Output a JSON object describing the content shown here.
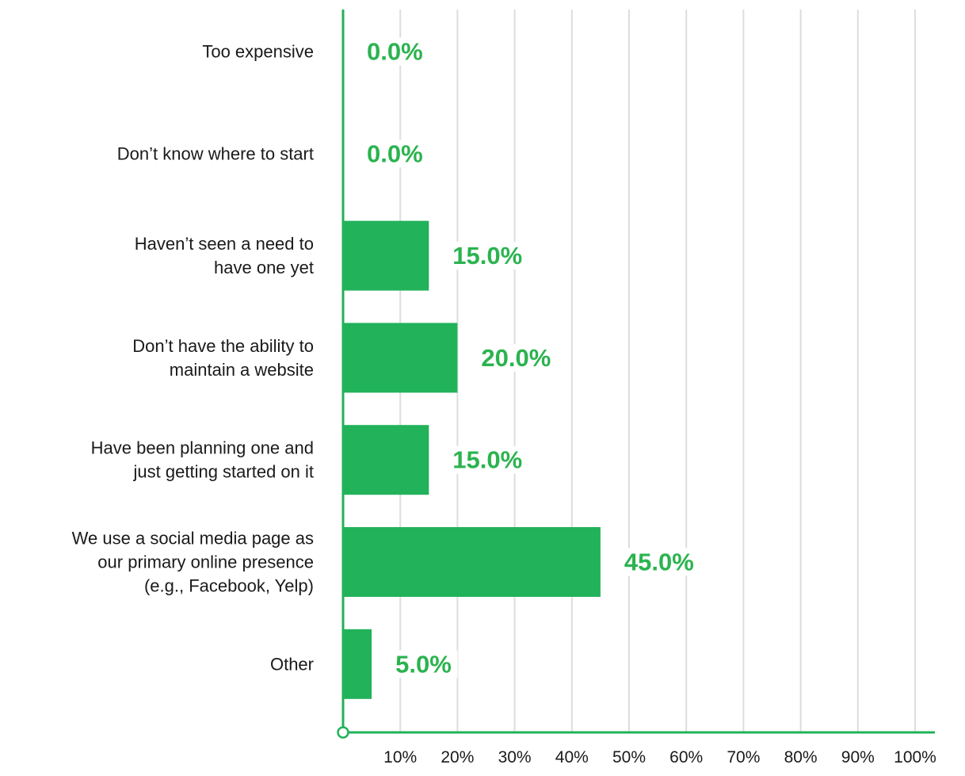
{
  "chart_data": {
    "type": "bar",
    "orientation": "horizontal",
    "categories": [
      [
        "Too expensive"
      ],
      [
        "Don’t know where to start"
      ],
      [
        "Haven’t seen a need to",
        "have one yet"
      ],
      [
        "Don’t have the ability to",
        "maintain a website"
      ],
      [
        "Have been planning one and",
        "just getting started on it"
      ],
      [
        "We use a social media page as",
        "our primary online presence",
        "(e.g., Facebook, Yelp)"
      ],
      [
        "Other"
      ]
    ],
    "values": [
      0.0,
      0.0,
      15.0,
      20.0,
      15.0,
      45.0,
      5.0
    ],
    "value_labels": [
      "0.0%",
      "0.0%",
      "15.0%",
      "20.0%",
      "15.0%",
      "45.0%",
      "5.0%"
    ],
    "x_ticks": [
      10,
      20,
      30,
      40,
      50,
      60,
      70,
      80,
      90,
      100
    ],
    "x_tick_labels": [
      "10%",
      "20%",
      "30%",
      "40%",
      "50%",
      "60%",
      "70%",
      "80%",
      "90%",
      "100%"
    ],
    "xlim": [
      0,
      100
    ],
    "grid": true,
    "legend": "none",
    "colors": {
      "bar": "#22b25a",
      "label": "#2bb34f",
      "axis": "#22b25a",
      "grid": "#dddddd"
    }
  }
}
